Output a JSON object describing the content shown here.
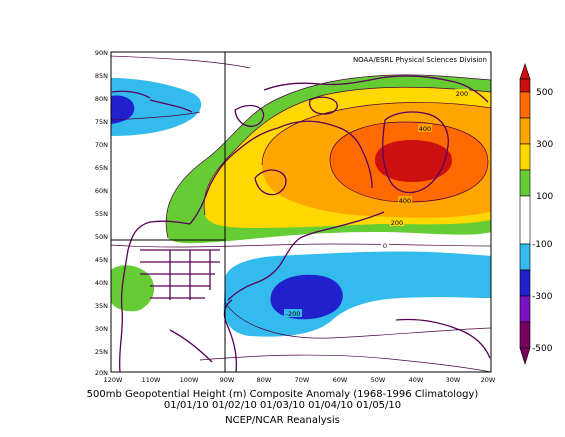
{
  "map": {
    "attribution": "NOAA/ESRL Physical Sciences Division",
    "lat_labels": [
      "90N",
      "85N",
      "80N",
      "75N",
      "70N",
      "65N",
      "60N",
      "55N",
      "50N",
      "45N",
      "40N",
      "35N",
      "30N",
      "25N",
      "20N"
    ],
    "lon_labels": [
      "120W",
      "110W",
      "100W",
      "90W",
      "80W",
      "70W",
      "60W",
      "50W",
      "40W",
      "30W",
      "20W"
    ],
    "contour_labels": [
      "200",
      "400",
      "400",
      "200",
      "0",
      "-200"
    ],
    "caption": {
      "line1": "500mb Geopotential Height (m) Composite Anomaly (1968-1996 Climatology)",
      "line2": "01/01/10 01/02/10 01/03/10 01/04/10 01/05/10",
      "line3": "NCEP/NCAR Reanalysis"
    }
  },
  "colorbar": {
    "labels": [
      "500",
      "300",
      "100",
      "-100",
      "-300",
      "-500"
    ],
    "colors": [
      "#cc1010",
      "#ff6a00",
      "#ffa500",
      "#ffd800",
      "#66cc33",
      "#ffffff",
      "#33bbee",
      "#2020cc",
      "#7a10c0",
      "#7a0060"
    ]
  },
  "colors": {
    "land_outline": "#5a005a",
    "contour": "#4a0040",
    "frame": "#000000"
  }
}
